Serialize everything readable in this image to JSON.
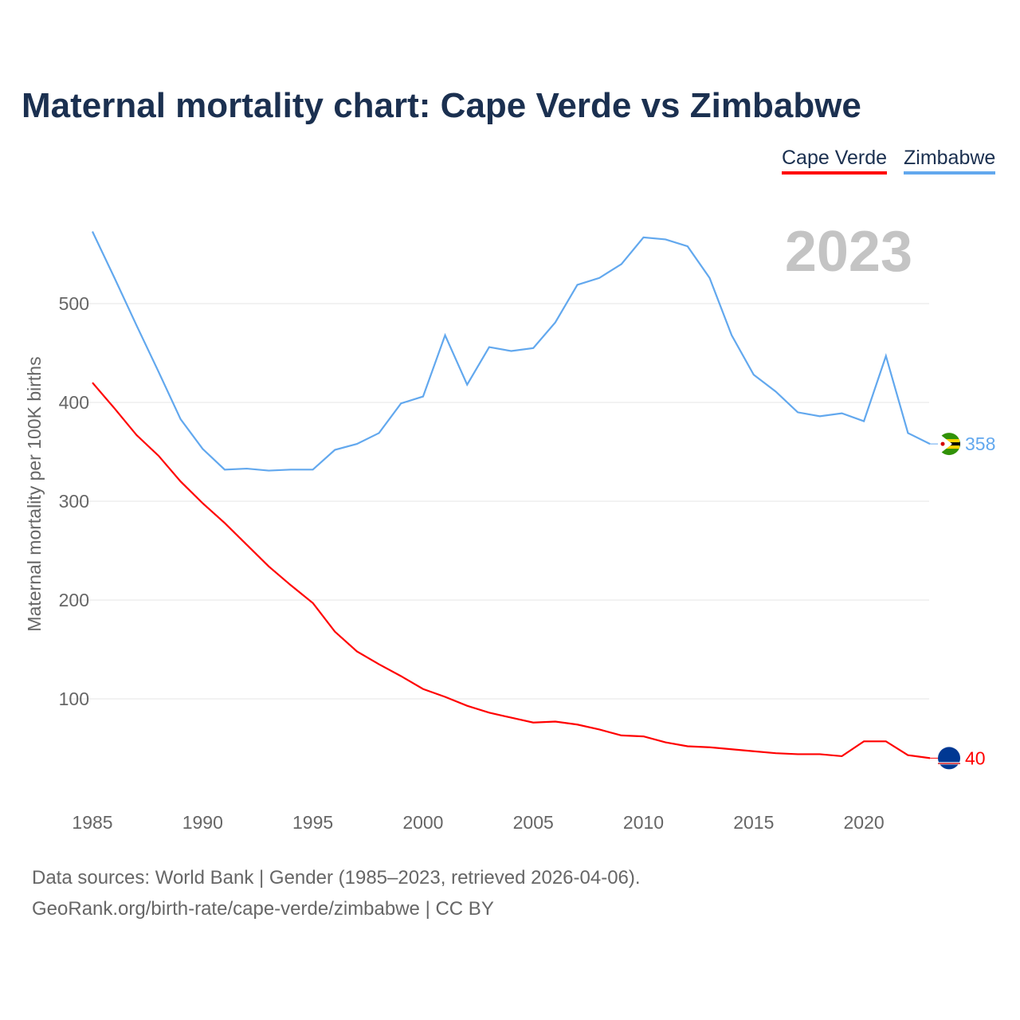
{
  "title": "Maternal mortality chart: Cape Verde vs Zimbabwe",
  "footer": {
    "line1": "Data sources: World Bank | Gender (1985–2023, retrieved 2026-04-06).",
    "line2": "GeoRank.org/birth-rate/cape-verde/zimbabwe | CC BY"
  },
  "chart_data": {
    "type": "line",
    "title": "Maternal mortality chart: Cape Verde vs Zimbabwe",
    "ylabel": "Maternal mortality per 100K births",
    "xlabel": "",
    "year_label": "2023",
    "ylim": [
      0,
      590
    ],
    "xlim": [
      1985,
      2023
    ],
    "yticks": [
      100,
      200,
      300,
      400,
      500
    ],
    "xticks": [
      1985,
      1990,
      1995,
      2000,
      2005,
      2010,
      2015,
      2020
    ],
    "legend": "top-right",
    "x": [
      1985,
      1986,
      1987,
      1988,
      1989,
      1990,
      1991,
      1992,
      1993,
      1994,
      1995,
      1996,
      1997,
      1998,
      1999,
      2000,
      2001,
      2002,
      2003,
      2004,
      2005,
      2006,
      2007,
      2008,
      2009,
      2010,
      2011,
      2012,
      2013,
      2014,
      2015,
      2016,
      2017,
      2018,
      2019,
      2020,
      2021,
      2022,
      2023
    ],
    "series": [
      {
        "name": "Cape Verde",
        "color": "#ff0000",
        "end_label": "40",
        "values": [
          420,
          394,
          367,
          346,
          320,
          298,
          278,
          256,
          234,
          215,
          197,
          168,
          148,
          135,
          123,
          110,
          102,
          93,
          86,
          81,
          76,
          77,
          74,
          69,
          63,
          62,
          56,
          52,
          51,
          49,
          47,
          45,
          44,
          44,
          42,
          57,
          57,
          43,
          40
        ]
      },
      {
        "name": "Zimbabwe",
        "color": "#62a8ee",
        "end_label": "358",
        "values": [
          573,
          526,
          478,
          431,
          383,
          353,
          332,
          333,
          331,
          332,
          332,
          352,
          358,
          369,
          399,
          406,
          468,
          418,
          456,
          452,
          455,
          481,
          519,
          526,
          540,
          567,
          565,
          558,
          526,
          468,
          428,
          411,
          390,
          386,
          389,
          381,
          447,
          369,
          358
        ]
      }
    ]
  }
}
